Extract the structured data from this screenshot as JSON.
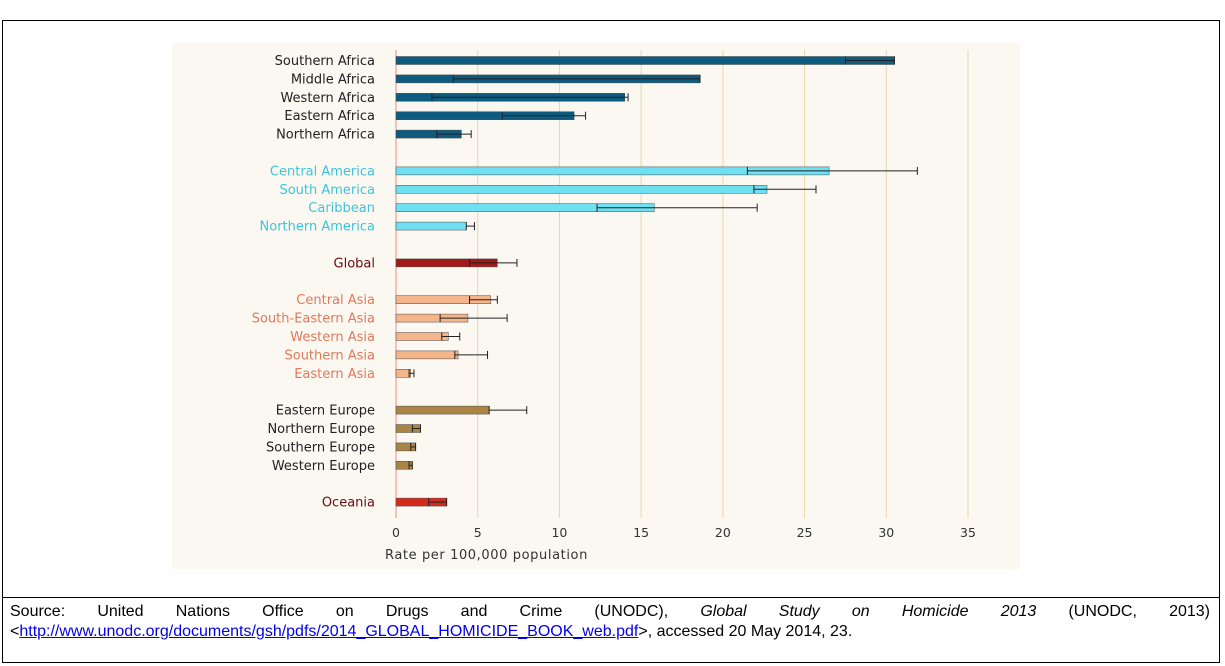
{
  "chart_data": {
    "type": "bar",
    "orientation": "horizontal",
    "xlabel": "Rate per 100,000 population",
    "xlim": [
      0,
      35
    ],
    "xticks": [
      0,
      5,
      10,
      15,
      20,
      25,
      30,
      35
    ],
    "grid": "vertical",
    "groups": [
      {
        "color": "#0e5b80",
        "label_color": "#222222",
        "categories": [
          {
            "name": "Southern Africa",
            "value": 30.5,
            "lower": 27.5,
            "upper": 30.5
          },
          {
            "name": "Middle Africa",
            "value": 18.6,
            "lower": 3.5,
            "upper": 18.6
          },
          {
            "name": "Western Africa",
            "value": 14.0,
            "lower": 2.2,
            "upper": 14.2
          },
          {
            "name": "Eastern Africa",
            "value": 10.9,
            "lower": 6.5,
            "upper": 11.6
          },
          {
            "name": "Northern Africa",
            "value": 4.0,
            "lower": 2.5,
            "upper": 4.6
          }
        ]
      },
      {
        "color": "#6fe0f2",
        "label_color": "#3ec3dc",
        "categories": [
          {
            "name": "Central America",
            "value": 26.5,
            "lower": 21.5,
            "upper": 31.9
          },
          {
            "name": "South America",
            "value": 22.7,
            "lower": 21.9,
            "upper": 25.7
          },
          {
            "name": "Caribbean",
            "value": 15.8,
            "lower": 12.3,
            "upper": 22.1
          },
          {
            "name": "Northern America",
            "value": 4.3,
            "lower": 4.3,
            "upper": 4.8
          }
        ]
      },
      {
        "color": "#a01818",
        "label_color": "#6b0a0a",
        "categories": [
          {
            "name": "Global",
            "value": 6.2,
            "lower": 4.5,
            "upper": 7.4
          }
        ]
      },
      {
        "color": "#f6b48a",
        "label_color": "#e2785a",
        "categories": [
          {
            "name": "Central Asia",
            "value": 5.8,
            "lower": 4.5,
            "upper": 6.2
          },
          {
            "name": "South-Eastern Asia",
            "value": 4.4,
            "lower": 2.7,
            "upper": 6.8
          },
          {
            "name": "Western Asia",
            "value": 3.2,
            "lower": 2.8,
            "upper": 3.9
          },
          {
            "name": "Southern Asia",
            "value": 3.8,
            "lower": 3.6,
            "upper": 5.6
          },
          {
            "name": "Eastern Asia",
            "value": 0.9,
            "lower": 0.8,
            "upper": 1.1
          }
        ]
      },
      {
        "color": "#a98445",
        "label_color": "#222222",
        "categories": [
          {
            "name": "Eastern Europe",
            "value": 5.7,
            "lower": 5.7,
            "upper": 8.0
          },
          {
            "name": "Northern Europe",
            "value": 1.5,
            "lower": 1.0,
            "upper": 1.5
          },
          {
            "name": "Southern Europe",
            "value": 1.2,
            "lower": 0.9,
            "upper": 1.2
          },
          {
            "name": "Western Europe",
            "value": 1.0,
            "lower": 0.8,
            "upper": 1.0
          }
        ]
      },
      {
        "color": "#d42a1e",
        "label_color": "#6b0a0a",
        "categories": [
          {
            "name": "Oceania",
            "value": 3.1,
            "lower": 2.0,
            "upper": 3.1
          }
        ]
      }
    ]
  },
  "caption": {
    "prefix": "Source: United Nations Office on Drugs and Crime (UNODC), ",
    "title": "Global Study on Homicide 2013",
    "middle": " (UNODC, 2013) <",
    "link": "http://www.unodc.org/documents/gsh/pdfs/2014_GLOBAL_HOMICIDE_BOOK_web.pdf",
    "suffix": ">, accessed 20 May 2014, 23."
  }
}
